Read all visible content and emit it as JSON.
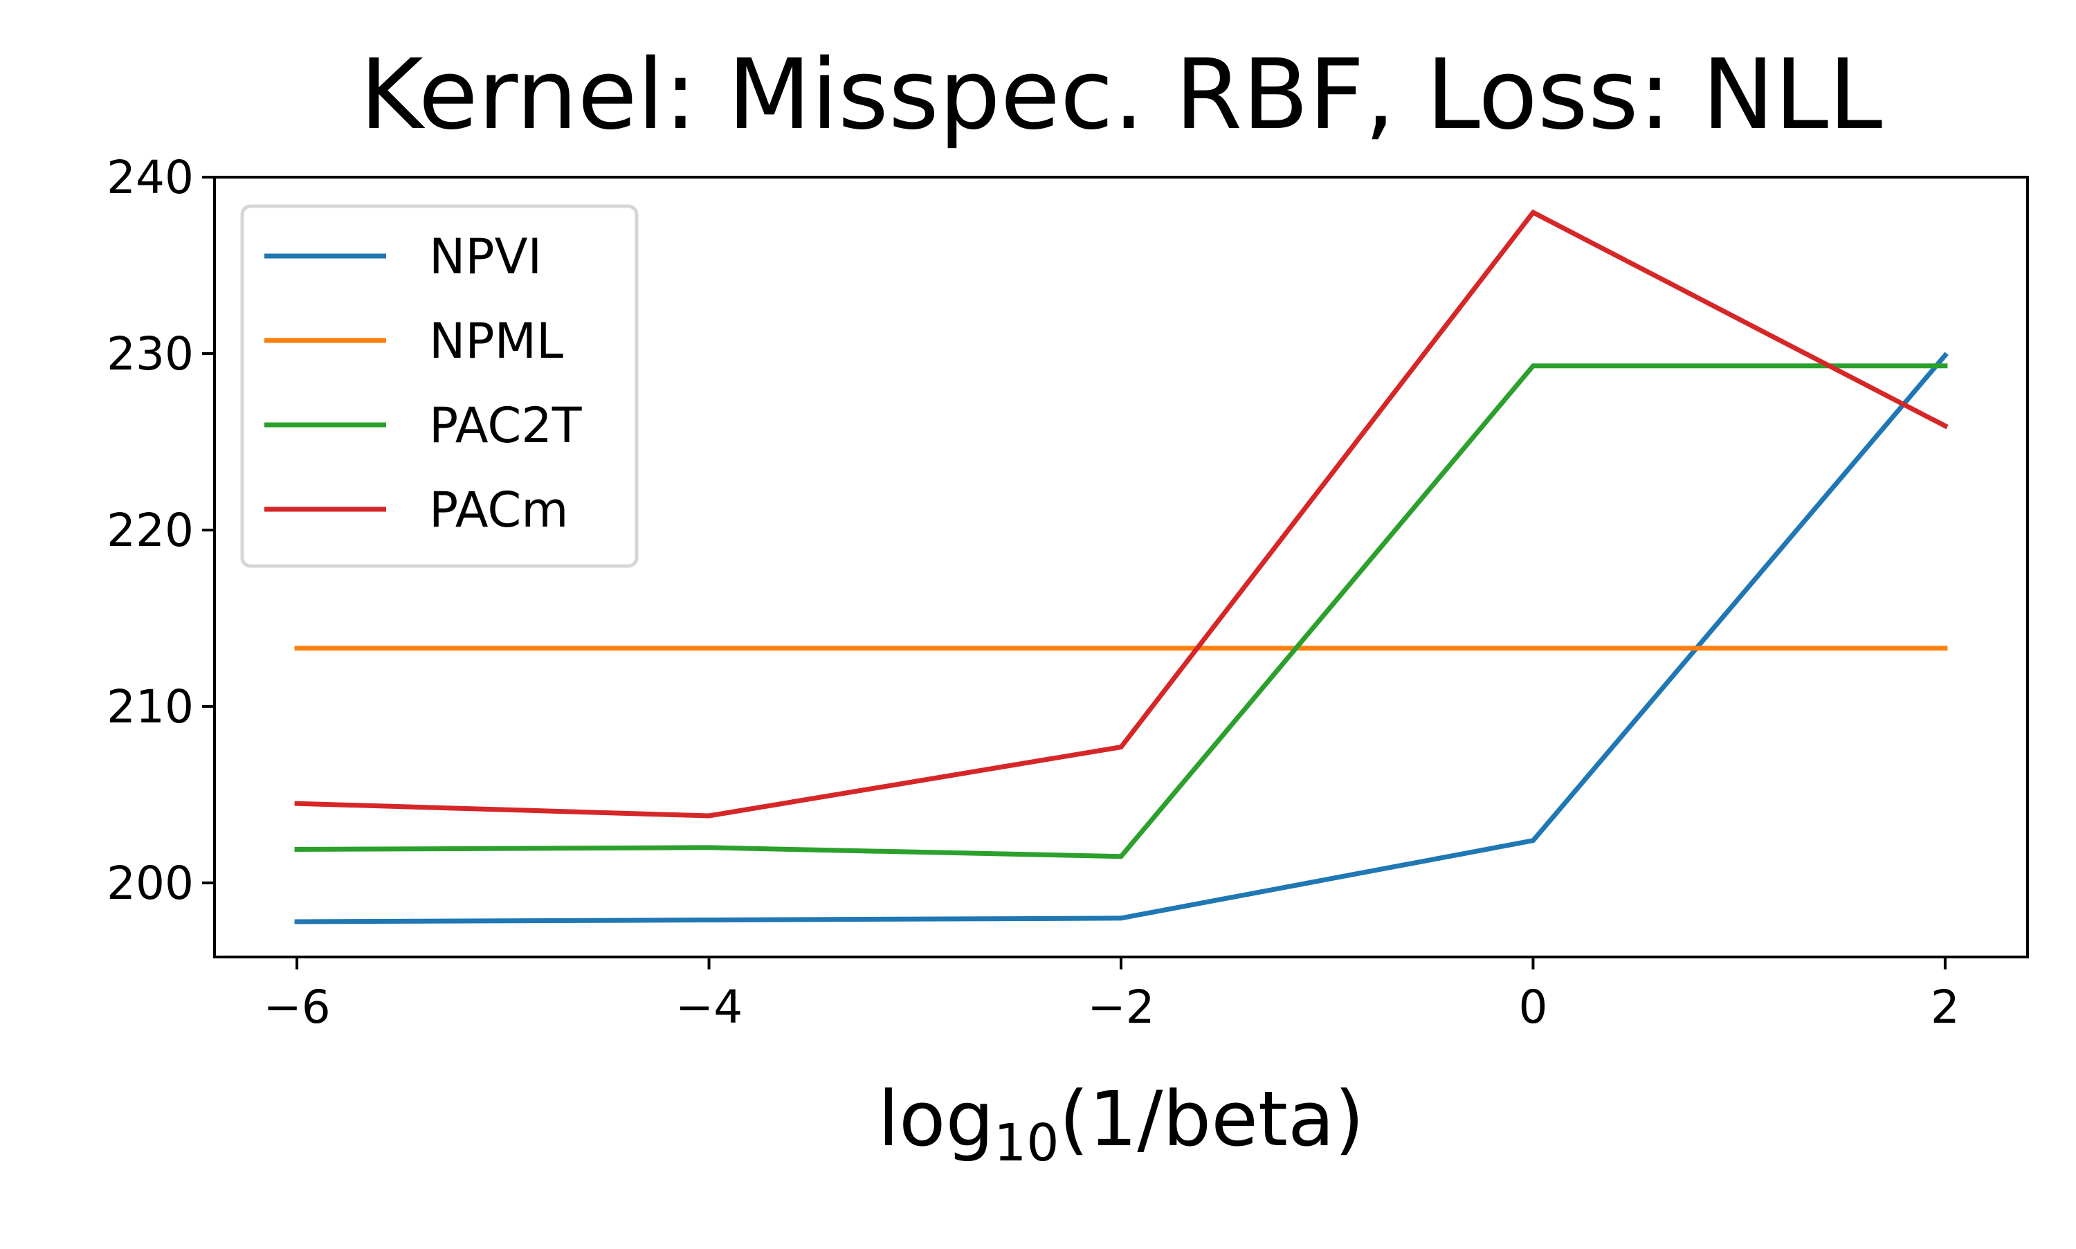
{
  "chart_data": {
    "type": "line",
    "title": "Kernel: Misspec. RBF, Loss: NLL",
    "xlabel": {
      "prefix": "log",
      "subscript": "10",
      "suffix": "(1/beta)"
    },
    "ylabel": "",
    "x": [
      -6,
      -4,
      -2,
      0,
      2
    ],
    "xlim": [
      -6.4,
      2.4
    ],
    "ylim": [
      195.8,
      240
    ],
    "xticks": [
      -6,
      -4,
      -2,
      0,
      2
    ],
    "xtick_labels": [
      "−6",
      "−4",
      "−2",
      "0",
      "2"
    ],
    "yticks": [
      200,
      210,
      220,
      230,
      240
    ],
    "ytick_labels": [
      "200",
      "210",
      "220",
      "230",
      "240"
    ],
    "grid": false,
    "legend_position": "upper left",
    "series": [
      {
        "name": "NPVI",
        "color": "#1f77b4",
        "values": [
          197.8,
          197.9,
          198.0,
          202.4,
          229.9
        ]
      },
      {
        "name": "NPML",
        "color": "#ff7f0e",
        "values": [
          213.3,
          213.3,
          213.3,
          213.3,
          213.3
        ]
      },
      {
        "name": "PAC2T",
        "color": "#2ca02c",
        "values": [
          201.9,
          202.0,
          201.5,
          229.3,
          229.3
        ]
      },
      {
        "name": "PACm",
        "color": "#d62728",
        "values": [
          204.5,
          203.8,
          207.7,
          238.0,
          225.9
        ]
      }
    ]
  }
}
